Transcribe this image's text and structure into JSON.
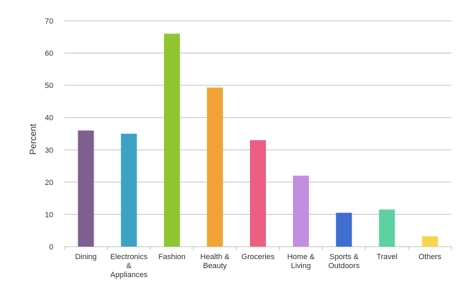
{
  "chart_data": {
    "type": "bar",
    "title": "",
    "xlabel": "",
    "ylabel": "Percent",
    "ylim": [
      0,
      70
    ],
    "yticks": [
      0,
      10,
      20,
      30,
      40,
      50,
      60,
      70
    ],
    "grid": true,
    "legend": "none",
    "categories": [
      [
        "Dining"
      ],
      [
        "Electronics",
        "&",
        "Appliances"
      ],
      [
        "Fashion"
      ],
      [
        "Health &",
        "Beauty"
      ],
      [
        "Groceries"
      ],
      [
        "Home &",
        "Living"
      ],
      [
        "Sports &",
        "Outdoors"
      ],
      [
        "Travel"
      ],
      [
        "Others"
      ]
    ],
    "values": [
      36,
      35,
      66,
      49.3,
      33,
      22,
      10.5,
      11.5,
      3.2
    ],
    "colors": [
      "#7d5f92",
      "#3ca3c2",
      "#8fc52e",
      "#f1a435",
      "#ec5f82",
      "#c18ee0",
      "#3f6ed0",
      "#5ed0a1",
      "#f7d54b"
    ]
  }
}
